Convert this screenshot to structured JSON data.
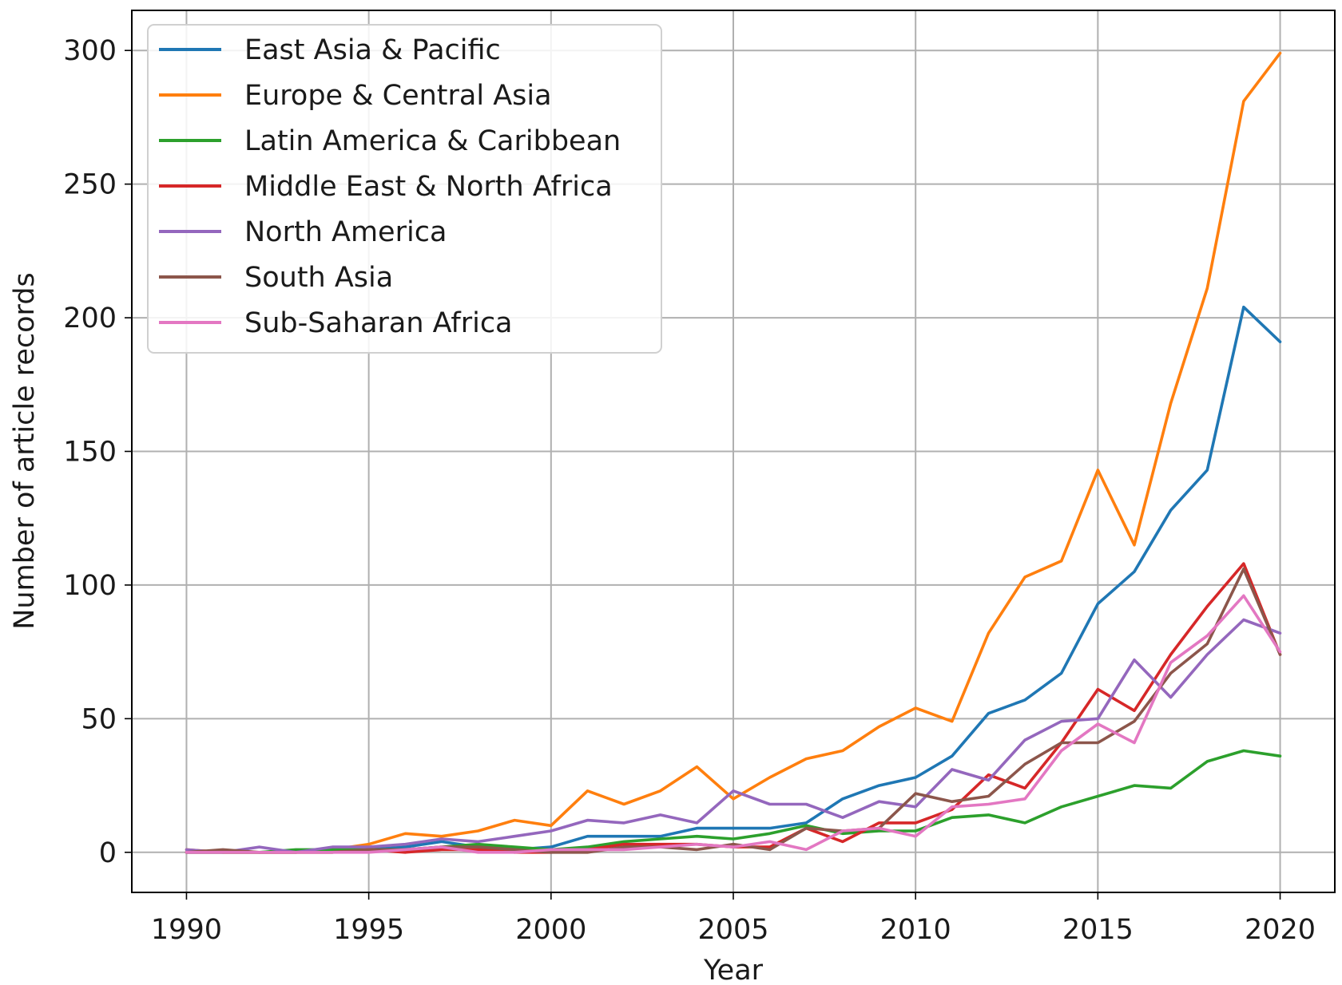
{
  "chart_data": {
    "type": "line",
    "title": "",
    "xlabel": "Year",
    "ylabel": "Number of article records",
    "xlim": [
      1988.5,
      2021.5
    ],
    "ylim": [
      -15,
      315
    ],
    "xticks": [
      1990,
      1995,
      2000,
      2005,
      2010,
      2015,
      2020
    ],
    "yticks": [
      0,
      50,
      100,
      150,
      200,
      250,
      300
    ],
    "grid": true,
    "legend_position": "top-left",
    "x": [
      1990,
      1991,
      1992,
      1993,
      1994,
      1995,
      1996,
      1997,
      1998,
      1999,
      2000,
      2001,
      2002,
      2003,
      2004,
      2005,
      2006,
      2007,
      2008,
      2009,
      2010,
      2011,
      2012,
      2013,
      2014,
      2015,
      2016,
      2017,
      2018,
      2019,
      2020
    ],
    "series": [
      {
        "name": "East Asia & Pacific",
        "color": "#1f77b4",
        "values": [
          0,
          0,
          0,
          0,
          1,
          1,
          2,
          4,
          2,
          1,
          2,
          6,
          6,
          6,
          9,
          9,
          9,
          11,
          20,
          25,
          28,
          36,
          52,
          57,
          67,
          93,
          105,
          128,
          143,
          204,
          191
        ]
      },
      {
        "name": "Europe & Central Asia",
        "color": "#ff7f0e",
        "values": [
          1,
          0,
          0,
          0,
          1,
          3,
          7,
          6,
          8,
          12,
          10,
          23,
          18,
          23,
          32,
          20,
          28,
          35,
          38,
          47,
          54,
          49,
          82,
          103,
          109,
          143,
          115,
          168,
          211,
          281,
          299
        ]
      },
      {
        "name": "Latin America & Caribbean",
        "color": "#2ca02c",
        "values": [
          0,
          0,
          0,
          1,
          1,
          1,
          1,
          2,
          3,
          2,
          1,
          2,
          4,
          5,
          6,
          5,
          7,
          10,
          7,
          8,
          8,
          13,
          14,
          11,
          17,
          21,
          25,
          24,
          34,
          38,
          36
        ]
      },
      {
        "name": "Middle East & North Africa",
        "color": "#d62728",
        "values": [
          0,
          0,
          0,
          0,
          0,
          1,
          0,
          1,
          1,
          0,
          0,
          1,
          3,
          3,
          3,
          2,
          2,
          9,
          4,
          11,
          11,
          16,
          29,
          24,
          41,
          61,
          53,
          74,
          92,
          108,
          74
        ]
      },
      {
        "name": "North America",
        "color": "#9467bd",
        "values": [
          1,
          0,
          2,
          0,
          2,
          2,
          3,
          5,
          4,
          6,
          8,
          12,
          11,
          14,
          11,
          23,
          18,
          18,
          13,
          19,
          17,
          31,
          27,
          42,
          49,
          50,
          72,
          58,
          74,
          87,
          82
        ]
      },
      {
        "name": "South Asia",
        "color": "#8c564b",
        "values": [
          0,
          1,
          0,
          0,
          0,
          1,
          1,
          2,
          2,
          1,
          0,
          0,
          2,
          2,
          1,
          3,
          1,
          9,
          8,
          9,
          22,
          19,
          21,
          33,
          41,
          41,
          49,
          67,
          78,
          106,
          74
        ]
      },
      {
        "name": "Sub-Saharan Africa",
        "color": "#e377c2",
        "values": [
          0,
          0,
          0,
          0,
          0,
          0,
          1,
          2,
          0,
          0,
          1,
          1,
          1,
          2,
          3,
          2,
          4,
          1,
          8,
          9,
          6,
          17,
          18,
          20,
          38,
          48,
          41,
          71,
          81,
          96,
          75
        ]
      }
    ]
  }
}
